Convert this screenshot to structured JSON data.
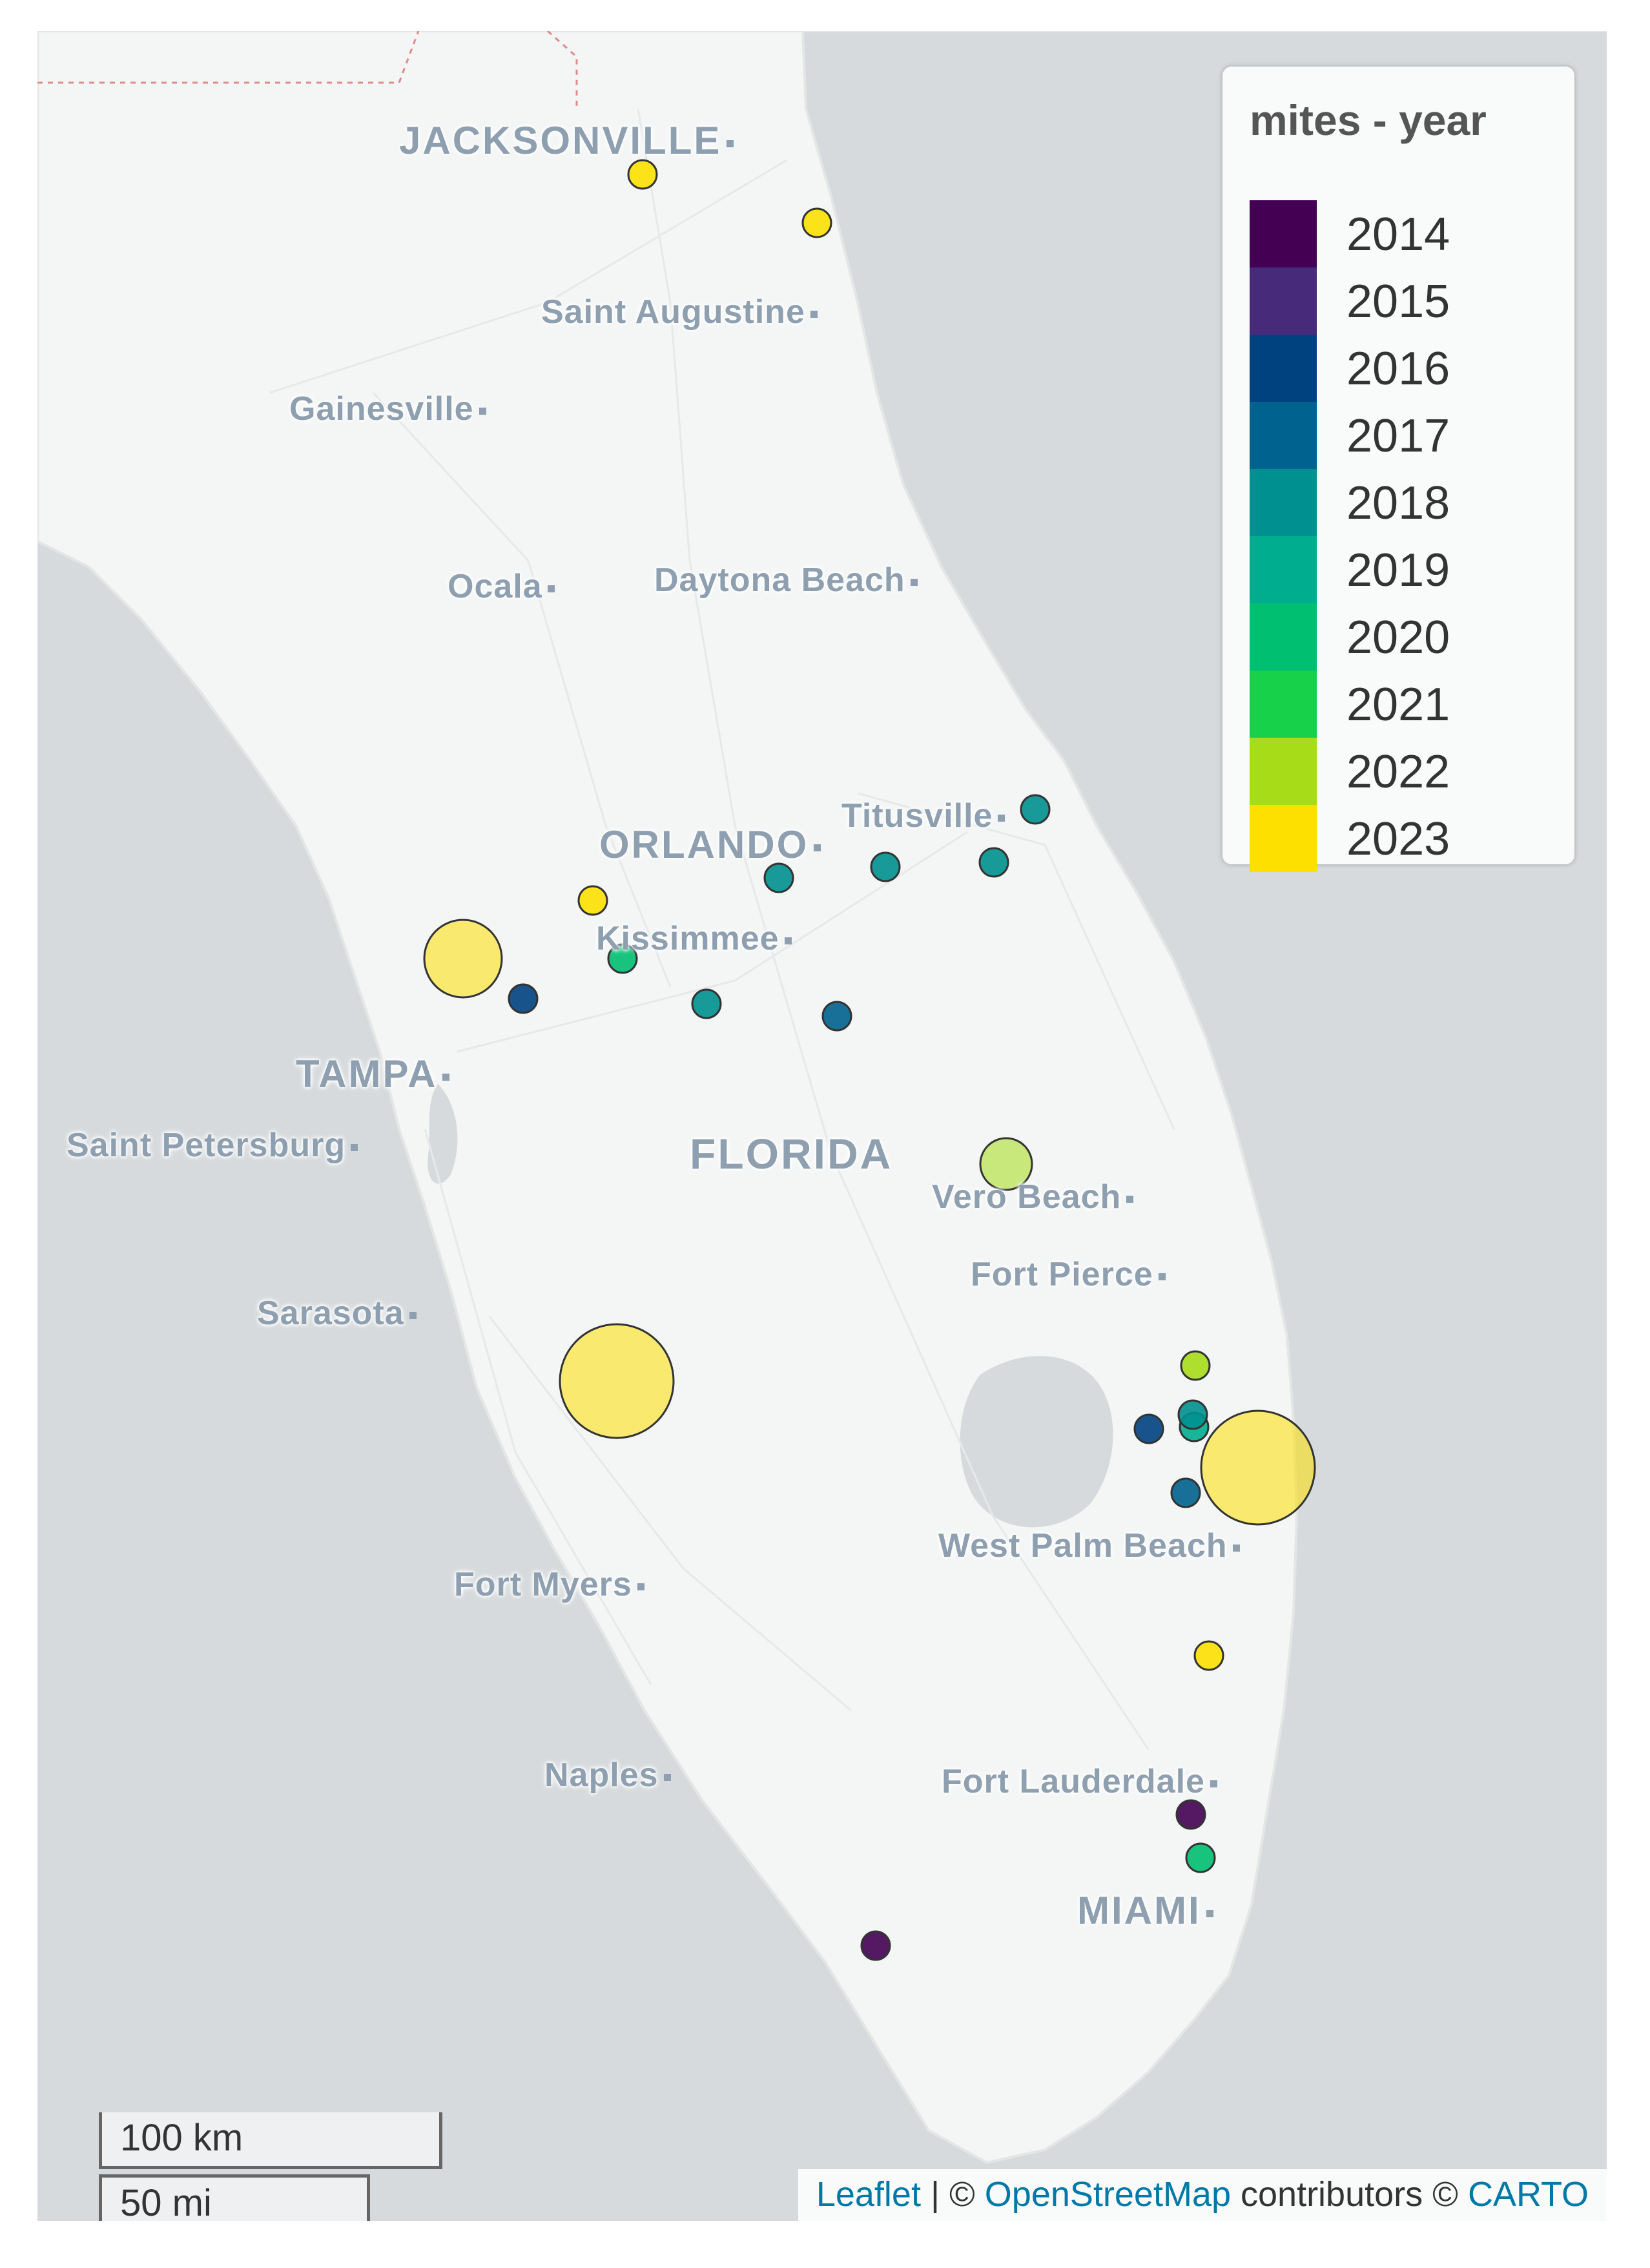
{
  "legend": {
    "title": "mites - year",
    "items": [
      {
        "label": "2014",
        "color": "#440154"
      },
      {
        "label": "2015",
        "color": "#472a7a"
      },
      {
        "label": "2016",
        "color": "#00427f"
      },
      {
        "label": "2017",
        "color": "#00628f"
      },
      {
        "label": "2018",
        "color": "#00908f"
      },
      {
        "label": "2019",
        "color": "#00ae8f"
      },
      {
        "label": "2020",
        "color": "#00bf70"
      },
      {
        "label": "2021",
        "color": "#17d14a"
      },
      {
        "label": "2022",
        "color": "#a6dc18"
      },
      {
        "label": "2023",
        "color": "#fde000"
      }
    ]
  },
  "cities": {
    "jacksonville": "JACKSONVILLE",
    "saint_augustine": "Saint Augustine",
    "gainesville": "Gainesville",
    "ocala": "Ocala",
    "daytona_beach": "Daytona Beach",
    "titusville": "Titusville",
    "orlando": "ORLANDO",
    "kissimmee": "Kissimmee",
    "tampa": "TAMPA",
    "saint_petersburg": "Saint Petersburg",
    "florida": "FLORIDA",
    "vero_beach": "Vero Beach",
    "fort_pierce": "Fort Pierce",
    "sarasota": "Sarasota",
    "west_palm_beach": "West Palm Beach",
    "fort_myers": "Fort Myers",
    "naples": "Naples",
    "fort_lauderdale": "Fort Lauderdale",
    "miami": "MIAMI"
  },
  "scale": {
    "km": "100 km",
    "mi": "50 mi"
  },
  "attribution": {
    "leaflet": "Leaflet",
    "sep": " | © ",
    "osm": "OpenStreetMap",
    "contributors": " contributors © ",
    "carto": "CARTO"
  },
  "sites": [
    {
      "year": 2023,
      "size": "s"
    },
    {
      "year": 2023,
      "size": "s"
    },
    {
      "year": 2023,
      "size": "l"
    },
    {
      "year": 2016,
      "size": "s"
    },
    {
      "year": 2023,
      "size": "s"
    },
    {
      "year": 2020,
      "size": "s"
    },
    {
      "year": 2018,
      "size": "s"
    },
    {
      "year": 2018,
      "size": "s"
    },
    {
      "year": 2018,
      "size": "s"
    },
    {
      "year": 2018,
      "size": "s"
    },
    {
      "year": 2018,
      "size": "s"
    },
    {
      "year": 2017,
      "size": "s"
    },
    {
      "year": 2022,
      "size": "m"
    },
    {
      "year": 2022,
      "size": "s"
    },
    {
      "year": 2019,
      "size": "s"
    },
    {
      "year": 2023,
      "size": "xl"
    },
    {
      "year": 2018,
      "size": "s"
    },
    {
      "year": 2016,
      "size": "s"
    },
    {
      "year": 2017,
      "size": "s"
    },
    {
      "year": 2023,
      "size": "s"
    },
    {
      "year": 2014,
      "size": "s"
    },
    {
      "year": 2023,
      "size": "xl"
    },
    {
      "year": 2020,
      "size": "s"
    },
    {
      "year": 2014,
      "size": "s"
    }
  ]
}
